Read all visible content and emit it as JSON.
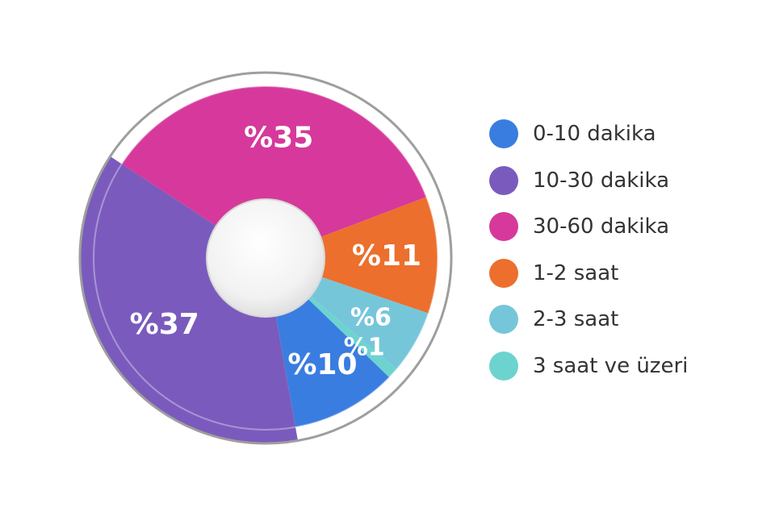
{
  "chart_data": {
    "type": "pie",
    "title": "",
    "slices": [
      {
        "name": "0-10 dakika",
        "value": 10,
        "label": "%10",
        "color": "#3a7de0"
      },
      {
        "name": "10-30 dakika",
        "value": 37,
        "label": "%37",
        "color": "#7a5bbd"
      },
      {
        "name": "30-60 dakika",
        "value": 35,
        "label": "%35",
        "color": "#d6399b"
      },
      {
        "name": "1-2 saat",
        "value": 11,
        "label": "%11",
        "color": "#ec6f2d"
      },
      {
        "name": "2-3 saat",
        "value": 6,
        "label": "%6",
        "color": "#76c6da"
      },
      {
        "name": "3 saat ve üzeri",
        "value": 1,
        "label": "%1",
        "color": "#6dd3cf"
      }
    ],
    "legend_position": "right"
  }
}
